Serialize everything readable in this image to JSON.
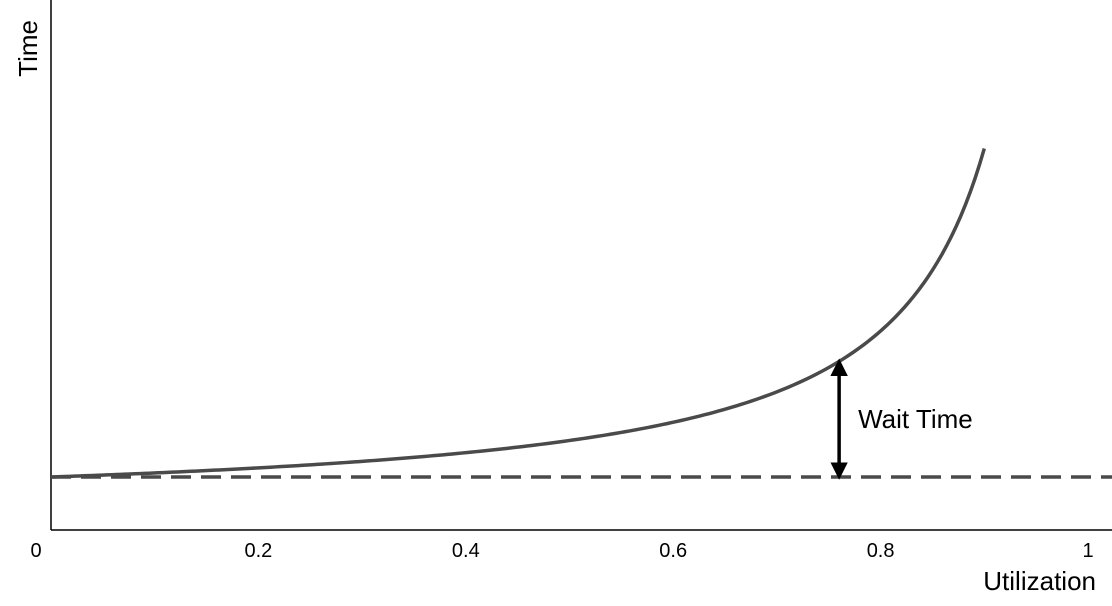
{
  "chart_data": {
    "type": "line",
    "title": "",
    "xlabel": "Utilization",
    "ylabel": "Time",
    "xlim": [
      0,
      1
    ],
    "xticks": [
      {
        "value": 0,
        "label": "0"
      },
      {
        "value": 0.2,
        "label": "0.2"
      },
      {
        "value": 0.4,
        "label": "0.4"
      },
      {
        "value": 0.6,
        "label": "0.6"
      },
      {
        "value": 0.8,
        "label": "0.8"
      },
      {
        "value": 1,
        "label": "1"
      }
    ],
    "y_tick_labels_shown": false,
    "grid": false,
    "series": [
      {
        "style": "solid",
        "color": "#4a4a4a",
        "formula": "service_time / (1 - utilization)",
        "x": [
          0,
          0.1,
          0.2,
          0.3,
          0.4,
          0.5,
          0.6,
          0.7,
          0.76,
          0.8,
          0.85,
          0.88,
          0.9
        ],
        "y": [
          1,
          1.11,
          1.25,
          1.43,
          1.67,
          2.0,
          2.5,
          3.33,
          4.17,
          5.0,
          6.67,
          8.33,
          10.0
        ]
      },
      {
        "style": "dashed",
        "color": "#4a4a4a",
        "x": [
          0,
          1
        ],
        "y": [
          1,
          1
        ]
      }
    ],
    "annotations": [
      {
        "text": "Wait Time",
        "type": "double-arrow",
        "x": 0.76,
        "y_from": 1,
        "y_to": 4.17
      }
    ]
  }
}
